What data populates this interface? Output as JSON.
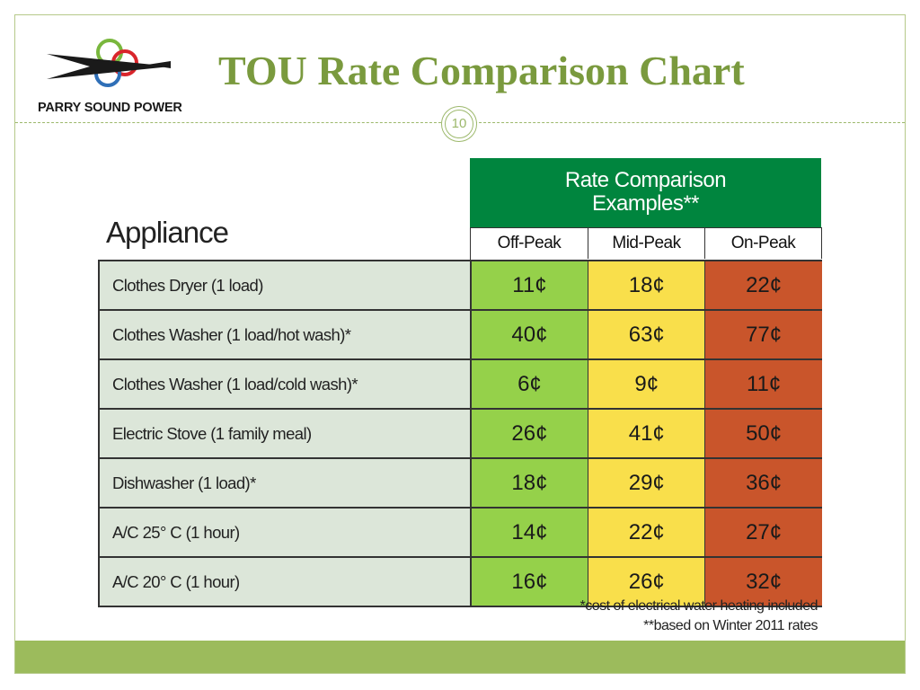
{
  "header": {
    "title": "TOU Rate Comparison Chart",
    "page_number": "10",
    "logo_text": "PARRY SOUND POWER"
  },
  "table": {
    "group_header_line1": "Rate Comparison",
    "group_header_line2": "Examples**",
    "appliance_header": "Appliance",
    "columns": [
      "Off-Peak",
      "Mid-Peak",
      "On-Peak"
    ],
    "rows": [
      {
        "name": "Clothes Dryer (1 load)",
        "off": "11¢",
        "mid": "18¢",
        "on": "22¢"
      },
      {
        "name": "Clothes Washer (1 load/hot wash)*",
        "off": "40¢",
        "mid": "63¢",
        "on": "77¢"
      },
      {
        "name": "Clothes Washer (1 load/cold wash)*",
        "off": "6¢",
        "mid": "9¢",
        "on": "11¢"
      },
      {
        "name": "Electric Stove (1 family meal)",
        "off": "26¢",
        "mid": "41¢",
        "on": "50¢"
      },
      {
        "name": "Dishwasher (1 load)*",
        "off": "18¢",
        "mid": "29¢",
        "on": "36¢"
      },
      {
        "name": "A/C 25° C (1 hour)",
        "off": "14¢",
        "mid": "22¢",
        "on": "27¢"
      },
      {
        "name": "A/C 20° C (1 hour)",
        "off": "16¢",
        "mid": "26¢",
        "on": "32¢"
      }
    ]
  },
  "notes": {
    "note1": "*cost of electrical water heating included",
    "note2": "**based on Winter 2011 rates"
  },
  "colors": {
    "title": "#7a9a3e",
    "header_green": "#00853e",
    "off_peak": "#95d14a",
    "mid_peak": "#f9df4b",
    "on_peak": "#c9552b",
    "appliance_cell": "#dce6d9",
    "footer_bar": "#9cbb5c"
  }
}
